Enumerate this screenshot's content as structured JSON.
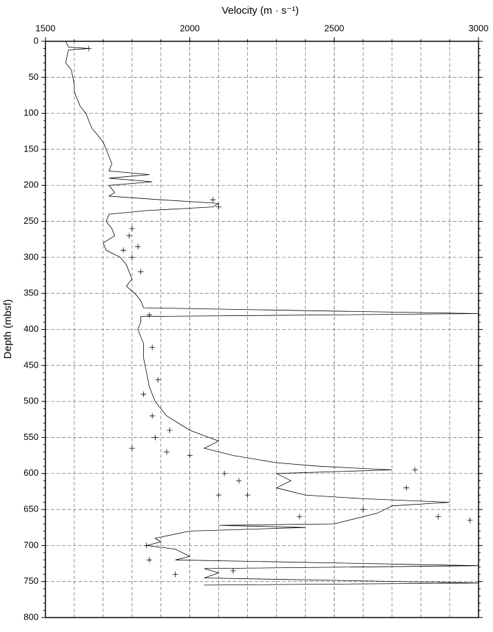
{
  "chart_data": {
    "type": "line",
    "x_label": "Velocity (m · s⁻¹)",
    "y_label": "Depth (mbsf)",
    "xlim": [
      1500,
      3000
    ],
    "xticks": [
      1500,
      2000,
      2500,
      3000
    ],
    "xgrid": [
      1600,
      1700,
      1800,
      1900,
      2000,
      2100,
      2200,
      2300,
      2400,
      2500,
      2600,
      2700,
      2800,
      2900
    ],
    "ylim": [
      0,
      800
    ],
    "y_inverted": true,
    "x_axis_position": "top",
    "yticks": [
      0,
      50,
      100,
      150,
      200,
      250,
      300,
      350,
      400,
      450,
      500,
      550,
      600,
      650,
      700,
      750,
      800
    ],
    "yminorticks": [
      0,
      10,
      20,
      30,
      40,
      50,
      60,
      70,
      80,
      90,
      100,
      110,
      120,
      130,
      140,
      150,
      160,
      170,
      180,
      190,
      200,
      210,
      220,
      230,
      240,
      250,
      260,
      270,
      280,
      290,
      300,
      310,
      320,
      330,
      340,
      350,
      360,
      370,
      380,
      390,
      400,
      410,
      420,
      430,
      440,
      450,
      460,
      470,
      480,
      490,
      500,
      510,
      520,
      530,
      540,
      550,
      560,
      570,
      580,
      590,
      600,
      610,
      620,
      630,
      640,
      650,
      660,
      670,
      680,
      690,
      700,
      710,
      720,
      730,
      740,
      750,
      760,
      770,
      780,
      790,
      800
    ],
    "grid": true,
    "series": [
      {
        "style": "line",
        "color": "#000000",
        "x": [
          1570,
          1580,
          1650,
          1580,
          1575,
          1570,
          1590,
          1595,
          1600,
          1600,
          1610,
          1620,
          1640,
          1650,
          1660,
          1680,
          1700,
          1710,
          1720,
          1730,
          1720,
          1860,
          1720,
          1870,
          1720,
          1740,
          1720,
          1900,
          2100,
          2080,
          1850,
          1720,
          1710,
          1730,
          1740,
          1700,
          1710,
          1760,
          1780,
          1790,
          1800,
          1780,
          1810,
          1830,
          1840,
          3000,
          1830,
          1830,
          1820,
          1840,
          1840,
          1850,
          1860,
          1880,
          1920,
          2000,
          2100,
          2050,
          2150,
          2300,
          2450,
          2700,
          2300,
          2350,
          2300,
          2400,
          2600,
          2900,
          2700,
          2650,
          2600,
          2500,
          2100,
          2400,
          2000,
          1880,
          1900,
          1850,
          1950,
          2000,
          1950,
          3000,
          2050,
          2100,
          2050,
          3000,
          2050
        ],
        "y": [
          0,
          8,
          10,
          12,
          20,
          30,
          40,
          50,
          60,
          70,
          80,
          90,
          100,
          110,
          120,
          130,
          140,
          150,
          160,
          170,
          180,
          185,
          190,
          195,
          200,
          210,
          215,
          220,
          225,
          230,
          235,
          240,
          250,
          260,
          270,
          280,
          290,
          300,
          310,
          320,
          330,
          340,
          350,
          360,
          370,
          378,
          382,
          390,
          400,
          420,
          440,
          460,
          480,
          500,
          520,
          540,
          555,
          565,
          575,
          585,
          590,
          595,
          600,
          610,
          620,
          630,
          635,
          640,
          645,
          655,
          660,
          670,
          672,
          675,
          680,
          690,
          695,
          700,
          705,
          715,
          720,
          728,
          732,
          738,
          745,
          752,
          755
        ]
      },
      {
        "style": "plus",
        "color": "#000000",
        "x": [
          1650,
          2080,
          2100,
          1800,
          1790,
          1820,
          1770,
          1800,
          1830,
          1860,
          1870,
          1890,
          1840,
          1870,
          1930,
          1880,
          1800,
          1920,
          2000,
          2780,
          2750,
          2100,
          2200,
          2380,
          2860,
          2970,
          2600,
          1850,
          1860,
          2150,
          1950,
          2120,
          2170
        ],
        "y": [
          10,
          220,
          230,
          260,
          270,
          285,
          290,
          300,
          320,
          380,
          425,
          470,
          490,
          520,
          540,
          550,
          565,
          570,
          575,
          595,
          620,
          630,
          630,
          660,
          660,
          665,
          650,
          700,
          720,
          735,
          740,
          600,
          610
        ]
      }
    ]
  }
}
